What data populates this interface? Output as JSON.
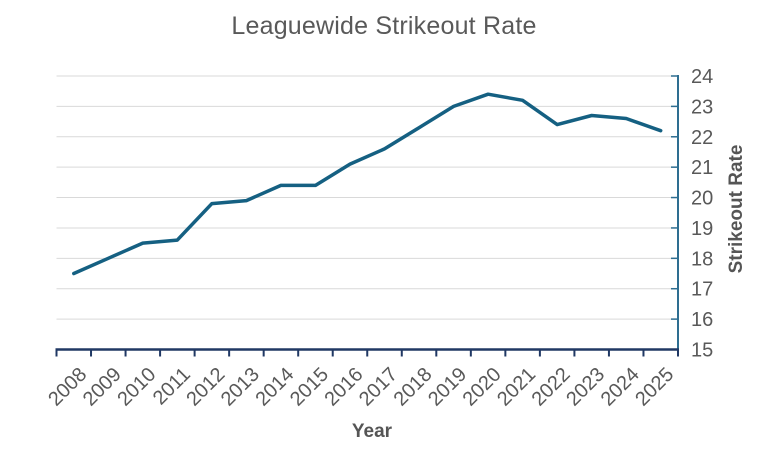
{
  "chart_data": {
    "type": "line",
    "title": "Leaguewide Strikeout Rate",
    "xlabel": "Year",
    "ylabel": "Strikeout Rate",
    "categories": [
      "2008",
      "2009",
      "2010",
      "2011",
      "2012",
      "2013",
      "2014",
      "2015",
      "2016",
      "2017",
      "2018",
      "2019",
      "2020",
      "2021",
      "2022",
      "2023",
      "2024",
      "2025"
    ],
    "series": [
      {
        "name": "Strikeout Rate",
        "values": [
          17.5,
          18.0,
          18.5,
          18.6,
          19.8,
          19.9,
          20.4,
          20.4,
          21.1,
          21.6,
          22.3,
          23.0,
          23.4,
          23.2,
          22.4,
          22.7,
          22.6,
          22.2
        ]
      }
    ],
    "ylim": [
      15,
      24
    ],
    "yticks": [
      15,
      16,
      17,
      18,
      19,
      20,
      21,
      22,
      23,
      24
    ],
    "grid": true,
    "legend": false,
    "x_tick_rotation_deg": 45,
    "colors": {
      "series": "#156082",
      "x_axis": "#203864",
      "y_axis": "#2E6E91",
      "gridline": "#D9D9D9",
      "tick_label": "#595959",
      "title": "#595959"
    }
  }
}
